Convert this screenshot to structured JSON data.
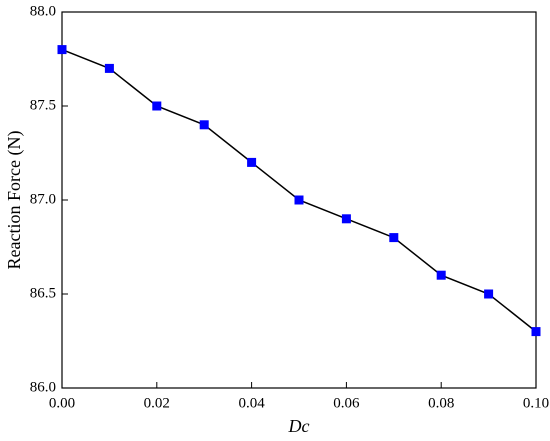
{
  "chart_data": {
    "type": "line",
    "xlabel": "Dc",
    "ylabel": "Reaction Force (N)",
    "x": [
      0,
      0.01,
      0.02,
      0.03,
      0.04,
      0.05,
      0.06,
      0.07,
      0.08,
      0.09,
      0.1
    ],
    "series": [
      {
        "color": "#0000ff",
        "line_color": "#000000",
        "marker": "square",
        "values": [
          87.8,
          87.7,
          87.5,
          87.4,
          87.2,
          87.0,
          86.9,
          86.8,
          86.6,
          86.5,
          86.3
        ]
      }
    ],
    "xlim": [
      0,
      0.1
    ],
    "xticks": [
      {
        "value": 0,
        "label": "0.00"
      },
      {
        "value": 0.02,
        "label": "0.02"
      },
      {
        "value": 0.04,
        "label": "0.04"
      },
      {
        "value": 0.06,
        "label": "0.06"
      },
      {
        "value": 0.08,
        "label": "0.08"
      },
      {
        "value": 0.1,
        "label": "0.10"
      }
    ],
    "ylim": [
      86,
      88
    ],
    "yticks": [
      {
        "value": 86,
        "label": "86.0"
      },
      86.5,
      {
        "value": 87,
        "label": "87.0"
      },
      87.5,
      {
        "value": 88,
        "label": "88.0"
      }
    ],
    "grid": false
  }
}
